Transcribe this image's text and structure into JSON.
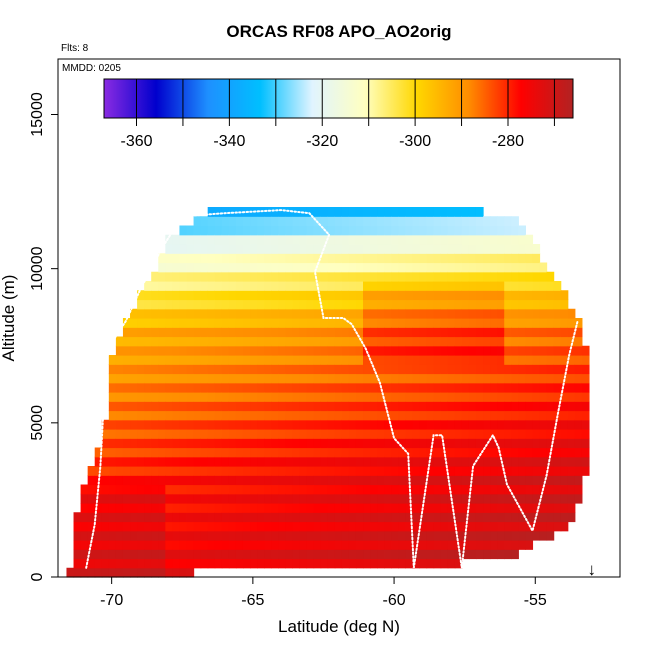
{
  "chart_data": {
    "type": "heatmap",
    "title": "ORCAS RF08 APO_AO2orig",
    "flights_note": "Flts: 8",
    "date_note": "MMDD: 0205",
    "xlabel": "Latitude (deg N)",
    "ylabel": "Altitude (m)",
    "xlim": [
      -71.9,
      -52.0
    ],
    "ylim": [
      0,
      16800
    ],
    "x_ticks": [
      -70,
      -65,
      -60,
      -55
    ],
    "x_tick_labels": [
      "-70",
      "-65",
      "-60",
      "-55"
    ],
    "y_ticks": [
      0,
      5000,
      10000,
      15000
    ],
    "y_tick_labels": [
      "0",
      "5000",
      "10000",
      "15000"
    ],
    "colorbar": {
      "range": [
        -367,
        -266
      ],
      "ticks": [
        -360,
        -340,
        -320,
        -300,
        -280
      ],
      "tick_labels": [
        "-360",
        "-340",
        "-320",
        "-300",
        "-280"
      ],
      "colors": [
        "#8a2be2",
        "#0000cd",
        "#1e90ff",
        "#00bfff",
        "#e0f4ff",
        "#ffffc0",
        "#ffd700",
        "#ff8c00",
        "#ff0000",
        "#b22222"
      ]
    },
    "heat_cells_info": "approximately 0.25 deg x 300 m grid cells, APO ranging from about -340 near 12 km to about -270 below 4 km",
    "outline": {
      "lat": [
        -71.5,
        -71.4,
        -71.1,
        -70.6,
        -70.2,
        -70.0,
        -69.4,
        -68.5,
        -68.0,
        -66.5,
        -64.0,
        -60.0,
        -57.5,
        -55.5,
        -54.5,
        -53.5,
        -53.0,
        -53.2,
        -53.6,
        -54.2,
        -55.0,
        -55.3,
        -56.0,
        -57.5,
        -59.0,
        -61.0,
        -64.0,
        -67.0,
        -69.0,
        -70.0,
        -70.8,
        -71.5
      ],
      "alt": [
        0,
        1400,
        2600,
        3800,
        5300,
        7000,
        8600,
        9800,
        11100,
        11900,
        12000,
        12100,
        12000,
        11500,
        10000,
        8500,
        6500,
        3500,
        2000,
        1400,
        1100,
        800,
        600,
        450,
        350,
        250,
        200,
        150,
        150,
        150,
        100,
        0
      ]
    },
    "flight_track": {
      "lat": [
        -70.9,
        -70.6,
        -70.4,
        -70.3,
        -70.2,
        -70.0,
        -69.5,
        -69.0,
        -68.2,
        -67.5,
        -66.0,
        -64.0,
        -63.0,
        -62.3,
        -62.8,
        -62.5,
        -61.8,
        -61.5,
        -61.0,
        -60.5,
        -60.0,
        -59.5,
        -59.3,
        -58.6,
        -58.3,
        -57.6,
        -57.2,
        -56.5,
        -56.3,
        -56.0,
        -55.1,
        -54.6,
        -54.2,
        -53.8,
        -53.5
      ],
      "alt": [
        300,
        1700,
        3600,
        5300,
        7000,
        7600,
        8300,
        9300,
        10700,
        11700,
        11800,
        11900,
        11800,
        11100,
        9900,
        8400,
        8400,
        8200,
        7400,
        6300,
        4500,
        4000,
        300,
        4600,
        4600,
        300,
        3600,
        4600,
        4200,
        3000,
        1500,
        3300,
        5300,
        7200,
        8300
      ]
    },
    "arrow": {
      "lat": -53.0,
      "label": "↓"
    }
  }
}
